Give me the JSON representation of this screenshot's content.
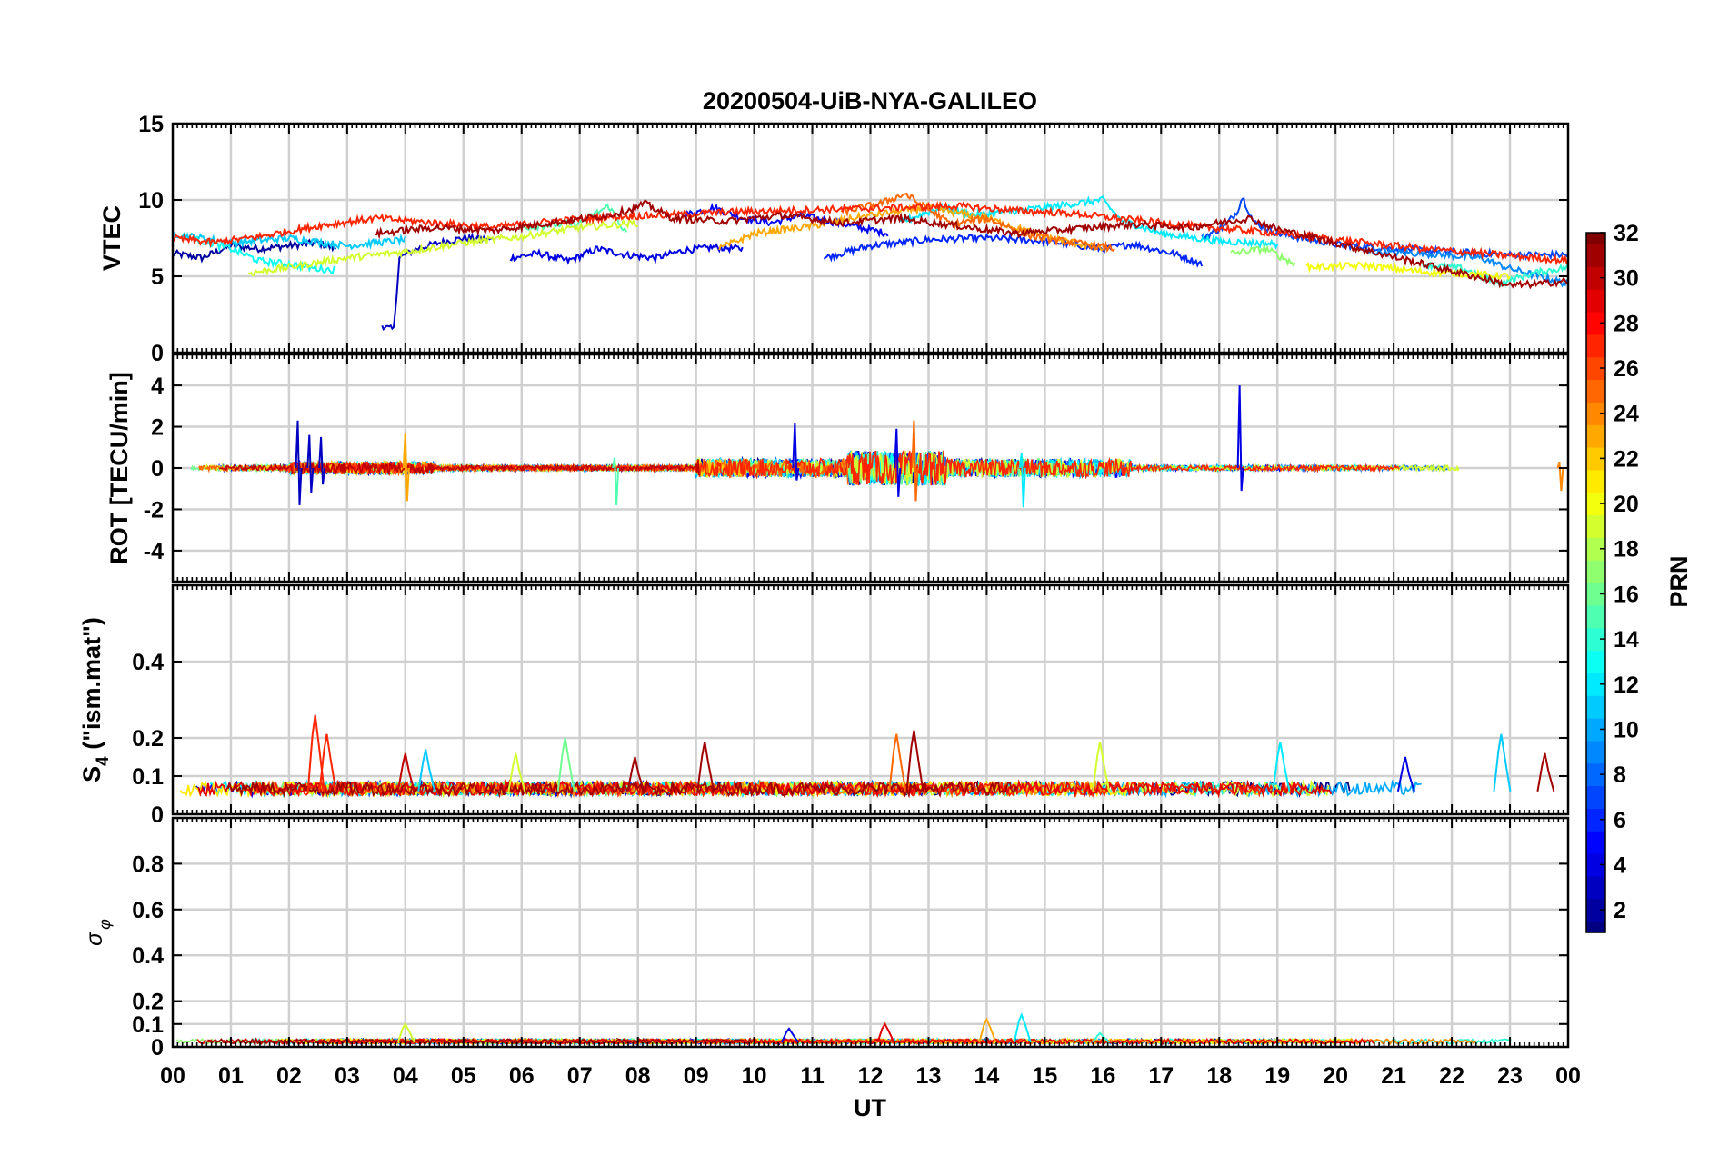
{
  "chart_data": {
    "type": "line",
    "title": "20200504-UiB-NYA-GALILEO",
    "xlabel": "UT",
    "x_tick_labels": [
      "00",
      "01",
      "02",
      "03",
      "04",
      "05",
      "06",
      "07",
      "08",
      "09",
      "10",
      "11",
      "12",
      "13",
      "14",
      "15",
      "16",
      "17",
      "18",
      "19",
      "20",
      "21",
      "22",
      "23",
      "00"
    ],
    "xlim_hours": [
      0,
      24
    ],
    "colorbar": {
      "label": "PRN",
      "range": [
        1,
        32
      ],
      "ticks": [
        2,
        4,
        6,
        8,
        10,
        12,
        14,
        16,
        18,
        20,
        22,
        24,
        26,
        28,
        30,
        32
      ],
      "colormap": "jet",
      "colors": [
        "#00008f",
        "#0000ff",
        "#0080ff",
        "#00ffff",
        "#80ff80",
        "#ffff00",
        "#ff8000",
        "#ff0000",
        "#800000"
      ]
    },
    "panels": [
      {
        "name": "vtec",
        "ylabel": "VTEC",
        "ylim": [
          0,
          15
        ],
        "yticks": [
          0,
          5,
          10,
          15
        ],
        "series": [
          {
            "prn": 2,
            "x": [
              0,
              0.5,
              1,
              1.5,
              2,
              2.5,
              2.8
            ],
            "y": [
              6.5,
              6.2,
              7,
              6.8,
              7,
              7.2,
              6.8
            ]
          },
          {
            "prn": 3,
            "x": [
              3.6,
              3.7,
              3.8,
              3.9,
              4.2,
              4.6,
              5,
              5.5
            ],
            "y": [
              1.8,
              1.6,
              1.5,
              6.2,
              6.8,
              7.2,
              7.5,
              7.4
            ]
          },
          {
            "prn": 4,
            "x": [
              5.8,
              6.3,
              6.8,
              7.3,
              7.8,
              8.3,
              8.8,
              9.3,
              9.8
            ],
            "y": [
              6.2,
              6.5,
              6,
              6.8,
              6.4,
              6.2,
              6.7,
              6.9,
              6.8
            ]
          },
          {
            "prn": 5,
            "x": [
              8.8,
              9.3,
              9.8,
              10.3,
              10.8,
              11.3,
              11.8,
              12.3
            ],
            "y": [
              9,
              9.5,
              8.8,
              8.5,
              9,
              8.6,
              8.2,
              7.8
            ]
          },
          {
            "prn": 6,
            "x": [
              11.2,
              12,
              13,
              14,
              15,
              16,
              16.5,
              17.2,
              17.7
            ],
            "y": [
              6.2,
              7,
              7.4,
              7.5,
              7.3,
              6.8,
              7.1,
              6.5,
              5.8
            ]
          },
          {
            "prn": 7,
            "x": [
              17.7,
              18.1,
              18.3,
              18.4,
              18.6,
              19,
              20,
              21,
              22,
              23,
              24
            ],
            "y": [
              7.5,
              8.3,
              9.2,
              10.2,
              8.5,
              7.8,
              7.1,
              6.8,
              6.6,
              6.4,
              6.4
            ]
          },
          {
            "prn": 9,
            "x": [
              20.5,
              21.5,
              22.5,
              23,
              23.5,
              24
            ],
            "y": [
              6.6,
              6.5,
              6.2,
              5.5,
              5,
              4.5
            ]
          },
          {
            "prn": 11,
            "x": [
              0,
              1,
              2,
              3,
              4
            ],
            "y": [
              7.8,
              7.2,
              7.5,
              7,
              7.4
            ]
          },
          {
            "prn": 12,
            "x": [
              12.5,
              13.2,
              13.8,
              14.3,
              15,
              15.6,
              16,
              16.3,
              17,
              18,
              19
            ],
            "y": [
              8.5,
              9.5,
              9,
              9.2,
              9.5,
              9.8,
              10,
              8.7,
              7.8,
              7.3,
              7.1
            ]
          },
          {
            "prn": 13,
            "x": [
              0.4,
              1,
              1.5,
              2,
              2.5,
              2.8
            ],
            "y": [
              7.4,
              6.8,
              6,
              5.8,
              5.5,
              5.4
            ]
          },
          {
            "prn": 14,
            "x": [
              21.5,
              22.2,
              22.8,
              23.4,
              24
            ],
            "y": [
              5.8,
              5.5,
              4.5,
              5.2,
              5.6
            ]
          },
          {
            "prn": 15,
            "x": [
              6,
              7,
              7.5,
              7.8
            ],
            "y": [
              8.2,
              8.5,
              9.6,
              7.8
            ]
          },
          {
            "prn": 17,
            "x": [
              18.2,
              18.8,
              19.3
            ],
            "y": [
              6.5,
              6.8,
              5.8
            ]
          },
          {
            "prn": 19,
            "x": [
              1.3,
              2,
              3,
              4,
              5,
              6,
              7,
              8
            ],
            "y": [
              5.2,
              5.6,
              6.2,
              6.6,
              7.2,
              7.6,
              8.2,
              8.5
            ]
          },
          {
            "prn": 20,
            "x": [
              19.5,
              20.5,
              21.5,
              22.5,
              23
            ],
            "y": [
              5.6,
              5.7,
              5.3,
              5.1,
              5
            ]
          },
          {
            "prn": 23,
            "x": [
              9.4,
              10,
              11,
              12,
              13,
              14,
              15,
              16
            ],
            "y": [
              6.8,
              7.8,
              8.3,
              9,
              9.5,
              8.8,
              7.6,
              6.8
            ]
          },
          {
            "prn": 25,
            "x": [
              11.5,
              12.2,
              12.6,
              12.9,
              13.4,
              14,
              14.8,
              15.5,
              16.2
            ],
            "y": [
              9.2,
              9.8,
              10.4,
              9.6,
              8.4,
              8.8,
              7.6,
              7.2,
              6.8
            ]
          },
          {
            "prn": 27,
            "x": [
              0,
              0.7,
              1.5,
              2.5,
              3.5,
              4.5,
              5.5,
              6.5,
              7.5,
              8.5,
              9.5,
              10.5,
              11.5,
              12.5,
              13.5,
              14.5,
              15.5,
              16.5,
              17.5,
              18.5,
              19.5,
              20.5,
              21.5,
              22.5,
              23.5,
              24
            ],
            "y": [
              7.5,
              7.2,
              7.6,
              8.3,
              8.8,
              8.5,
              8.2,
              8.6,
              8.9,
              9,
              9.2,
              9.3,
              9.4,
              9.5,
              9.6,
              9.3,
              9.1,
              8.7,
              8.3,
              8,
              7.6,
              7.2,
              6.8,
              6.5,
              6.2,
              6
            ]
          },
          {
            "prn": 31,
            "x": [
              3.5,
              4.5,
              5.5,
              6.5,
              7.5,
              8,
              8.1,
              8.6,
              9.5,
              10.5,
              11.5,
              12.5,
              13.5,
              14.5,
              15.5,
              16.5,
              17.5,
              18.5,
              19,
              22.6,
              23,
              23.5,
              24
            ],
            "y": [
              7.8,
              8.2,
              8,
              8.5,
              9,
              9.5,
              9.8,
              8.8,
              8.6,
              9,
              8.5,
              8.8,
              8.3,
              7.8,
              8.1,
              8.4,
              8.2,
              8.8,
              8.1,
              4.8,
              4.4,
              4.5,
              4.7
            ]
          }
        ]
      },
      {
        "name": "rot",
        "ylabel": "ROT [TECU/min]",
        "ylim": [
          -5.5,
          5.5
        ],
        "yticks": [
          -4,
          -2,
          0,
          2,
          4
        ],
        "spikes": [
          {
            "prn": 3,
            "x": 2.15,
            "y": [
              -1.8,
              2.3
            ]
          },
          {
            "prn": 3,
            "x": 2.35,
            "y": [
              -1.2,
              1.6
            ]
          },
          {
            "prn": 3,
            "x": 2.55,
            "y": [
              -0.8,
              1.5
            ]
          },
          {
            "prn": 23,
            "x": 4.0,
            "y": [
              -1.6,
              1.7
            ]
          },
          {
            "prn": 15,
            "x": 7.6,
            "y": [
              -1.8,
              0.5
            ]
          },
          {
            "prn": 4,
            "x": 10.7,
            "y": [
              -0.6,
              2.2
            ]
          },
          {
            "prn": 4,
            "x": 12.45,
            "y": [
              -1.4,
              1.9
            ]
          },
          {
            "prn": 25,
            "x": 12.75,
            "y": [
              -1.6,
              2.3
            ]
          },
          {
            "prn": 12,
            "x": 14.6,
            "y": [
              -1.9,
              0.7
            ]
          },
          {
            "prn": 4,
            "x": 18.35,
            "y": [
              -1.1,
              4.0
            ]
          },
          {
            "prn": 24,
            "x": 23.85,
            "y": [
              -1.1,
              0.3
            ]
          }
        ]
      },
      {
        "name": "s4",
        "ylabel": "S4 (\"ism.mat\")",
        "ylabel_main": "S",
        "ylabel_sub": "4",
        "ylabel_rest": " (\"ism.mat\")",
        "ylim": [
          0,
          0.6
        ],
        "yticks": [
          0,
          0.1,
          0.2,
          0.4
        ],
        "background_level": 0.06,
        "peaks": [
          {
            "prn": 27,
            "x": 2.45,
            "y": 0.26
          },
          {
            "prn": 27,
            "x": 2.65,
            "y": 0.21
          },
          {
            "prn": 30,
            "x": 4.0,
            "y": 0.16
          },
          {
            "prn": 11,
            "x": 4.35,
            "y": 0.17
          },
          {
            "prn": 19,
            "x": 5.9,
            "y": 0.16
          },
          {
            "prn": 16,
            "x": 6.75,
            "y": 0.2
          },
          {
            "prn": 31,
            "x": 7.95,
            "y": 0.15
          },
          {
            "prn": 31,
            "x": 9.15,
            "y": 0.19
          },
          {
            "prn": 25,
            "x": 12.45,
            "y": 0.21
          },
          {
            "prn": 31,
            "x": 12.75,
            "y": 0.22
          },
          {
            "prn": 19,
            "x": 15.95,
            "y": 0.19
          },
          {
            "prn": 12,
            "x": 19.05,
            "y": 0.19
          },
          {
            "prn": 4,
            "x": 21.2,
            "y": 0.15
          },
          {
            "prn": 11,
            "x": 22.85,
            "y": 0.21
          },
          {
            "prn": 31,
            "x": 23.6,
            "y": 0.16
          }
        ]
      },
      {
        "name": "sigma_phi",
        "ylabel": "σφ",
        "ylabel_main": "σ",
        "ylabel_sub": "φ",
        "ylim": [
          0,
          1.0
        ],
        "yticks": [
          0,
          0.1,
          0.2,
          0.4,
          0.6,
          0.8
        ],
        "background_level": 0.02,
        "peaks": [
          {
            "prn": 19,
            "x": 4.0,
            "y": 0.1
          },
          {
            "prn": 4,
            "x": 10.6,
            "y": 0.08
          },
          {
            "prn": 29,
            "x": 12.25,
            "y": 0.1
          },
          {
            "prn": 23,
            "x": 14.0,
            "y": 0.12
          },
          {
            "prn": 12,
            "x": 14.6,
            "y": 0.14
          },
          {
            "prn": 14,
            "x": 15.95,
            "y": 0.06
          }
        ]
      }
    ]
  }
}
